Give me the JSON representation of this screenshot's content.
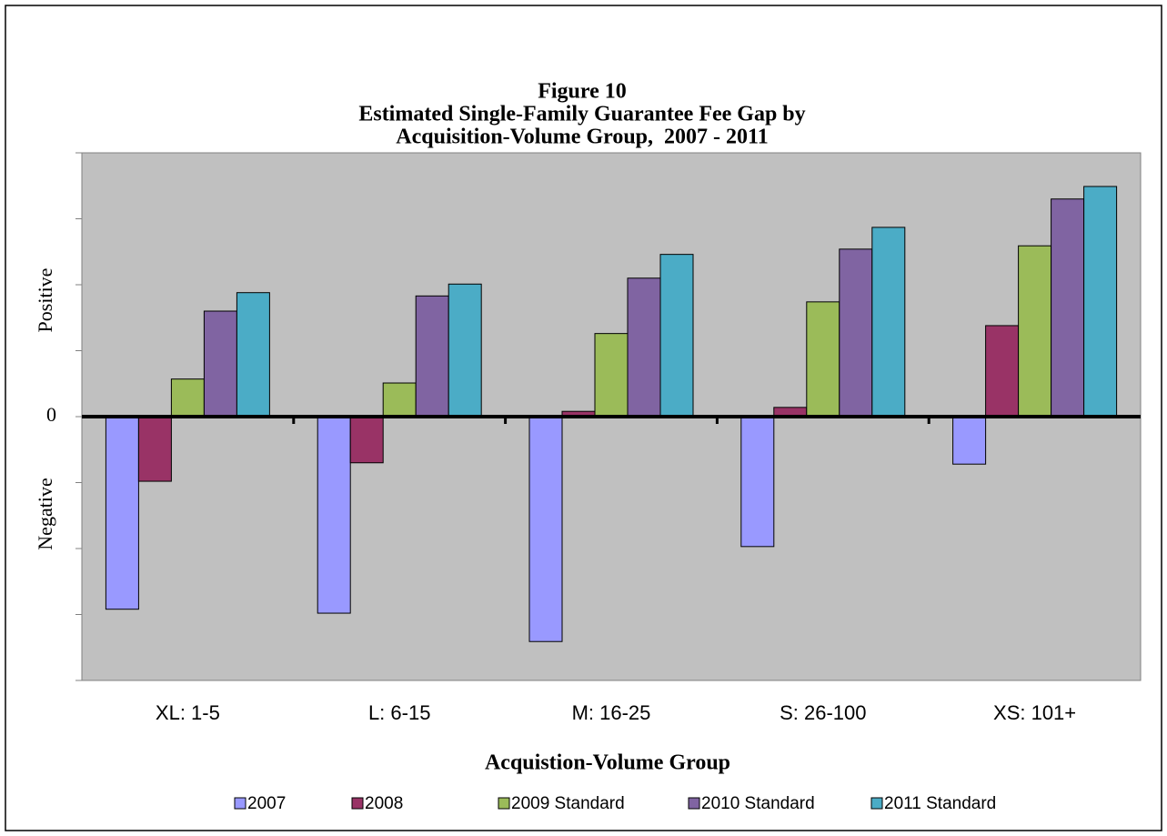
{
  "chart_data": {
    "type": "bar",
    "title": [
      "Figure 10",
      "Estimated Single-Family Guarantee Fee Gap by",
      "Acquisition-Volume Group,  2007 - 2011"
    ],
    "positive_label": "Positive",
    "negative_label": "Negative",
    "x_label": "Acquistion-Volume Group",
    "categories": [
      "XL: 1-5",
      "L: 6-15",
      "M: 16-25",
      "S: 26-100",
      "XS: 101+"
    ],
    "series": [
      {
        "name": "2007",
        "color": "#9999ff",
        "values": [
          -2.92,
          -2.98,
          -3.41,
          -1.97,
          -0.72
        ]
      },
      {
        "name": "2008",
        "color": "#993366",
        "values": [
          -0.98,
          -0.7,
          0.08,
          0.14,
          1.38
        ]
      },
      {
        "name": "2009 Standard",
        "color": "#9bbb59",
        "values": [
          0.57,
          0.51,
          1.26,
          1.74,
          2.59
        ]
      },
      {
        "name": "2010 Standard",
        "color": "#8064a2",
        "values": [
          1.6,
          1.83,
          2.1,
          2.54,
          3.3
        ]
      },
      {
        "name": "2011 Standard",
        "color": "#4bacc6",
        "values": [
          1.88,
          2.01,
          2.46,
          2.87,
          3.49
        ]
      }
    ],
    "ylim": [
      -4,
      4
    ],
    "yticks": [
      0
    ],
    "yminor_ticks": [
      -4,
      -3,
      -2,
      -1,
      1,
      2,
      3,
      4
    ],
    "plot_background": "#c0c0c0",
    "legend": "bottom"
  }
}
